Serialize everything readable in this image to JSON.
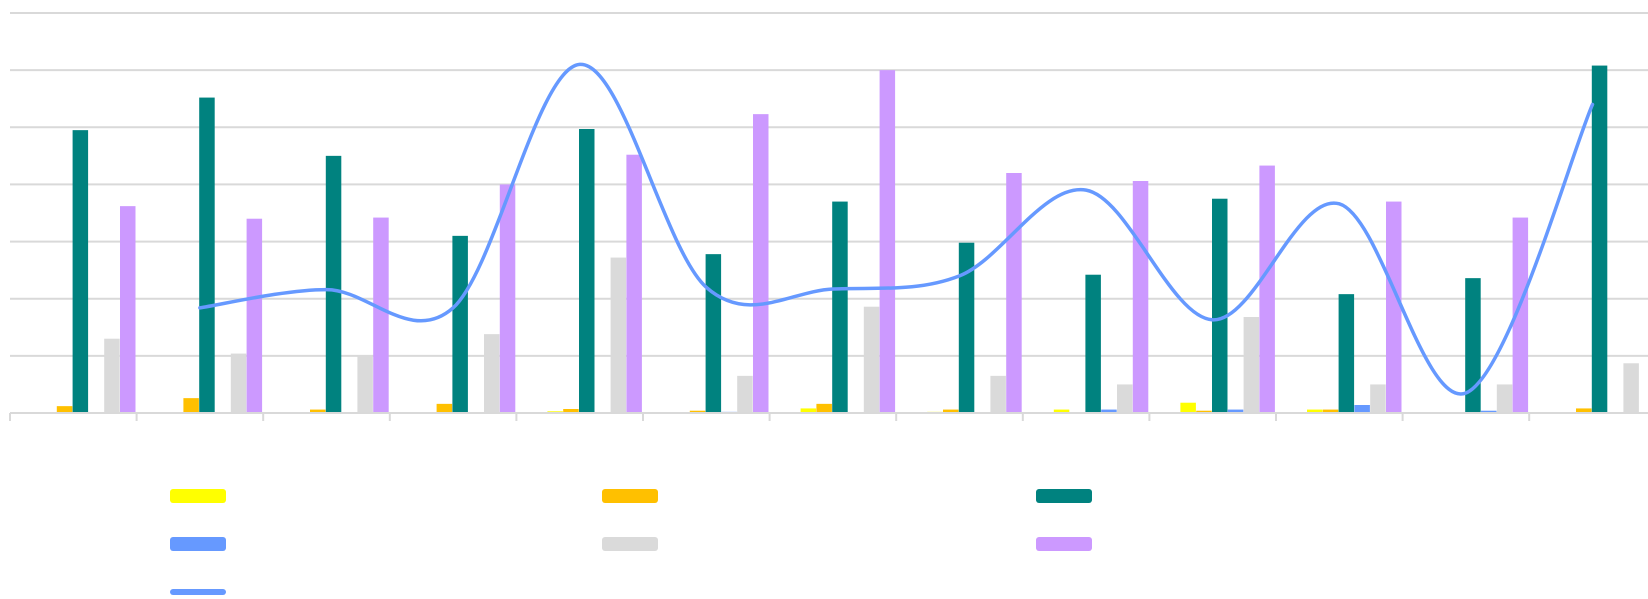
{
  "chart_data": {
    "type": "bar",
    "title": "",
    "xlabel": "",
    "ylabel": "",
    "categories": [
      "",
      "",
      "",
      "",
      "",
      "",
      "",
      "",
      "",
      "",
      "",
      "",
      ""
    ],
    "ylim": [
      0,
      70
    ],
    "grid": true,
    "legend_position": "bottom",
    "series": [
      {
        "color": "#FFFF00",
        "kind": "bar",
        "values": [
          0,
          0,
          0,
          0,
          0.3,
          0,
          0.8,
          0.2,
          0.6,
          1.8,
          0.6,
          0,
          0
        ]
      },
      {
        "color": "#FFC000",
        "kind": "bar",
        "values": [
          1.2,
          2.6,
          0.6,
          1.6,
          0.7,
          0.4,
          1.6,
          0.6,
          0,
          0.4,
          0.6,
          0,
          0.8
        ]
      },
      {
        "color": "#00827F",
        "kind": "bar",
        "values": [
          49.5,
          55.2,
          45,
          31,
          49.7,
          27.8,
          37,
          29.8,
          24.2,
          37.5,
          20.8,
          23.6,
          60.8
        ]
      },
      {
        "color": "#6699FF",
        "kind": "bar",
        "values": [
          0,
          0,
          0,
          0,
          0,
          0.2,
          0,
          0,
          0.6,
          0.6,
          1.4,
          0.4,
          0
        ]
      },
      {
        "color": "#DADADA",
        "kind": "bar",
        "values": [
          13,
          10.4,
          10,
          13.8,
          27.2,
          6.5,
          18.6,
          6.5,
          5,
          16.8,
          5,
          5,
          8.7
        ]
      },
      {
        "color": "#CC99FF",
        "kind": "bar",
        "values": [
          36.2,
          34,
          34.2,
          40,
          45.2,
          52.3,
          60,
          42,
          40.6,
          43.3,
          37,
          34.2,
          0
        ]
      },
      {
        "color": "#6699FF",
        "kind": "line",
        "values": [
          null,
          18.4,
          21.6,
          18.4,
          61,
          22,
          21.7,
          24,
          39,
          16.3,
          36.6,
          3.5,
          54
        ]
      }
    ]
  },
  "legend": [
    {
      "color": "#FFFF00",
      "kind": "bar",
      "label": ""
    },
    {
      "color": "#FFC000",
      "kind": "bar",
      "label": ""
    },
    {
      "color": "#00827F",
      "kind": "bar",
      "label": ""
    },
    {
      "color": "#6699FF",
      "kind": "bar",
      "label": ""
    },
    {
      "color": "#DADADA",
      "kind": "bar",
      "label": ""
    },
    {
      "color": "#CC99FF",
      "kind": "bar",
      "label": ""
    },
    {
      "color": "#6699FF",
      "kind": "line",
      "label": ""
    }
  ]
}
